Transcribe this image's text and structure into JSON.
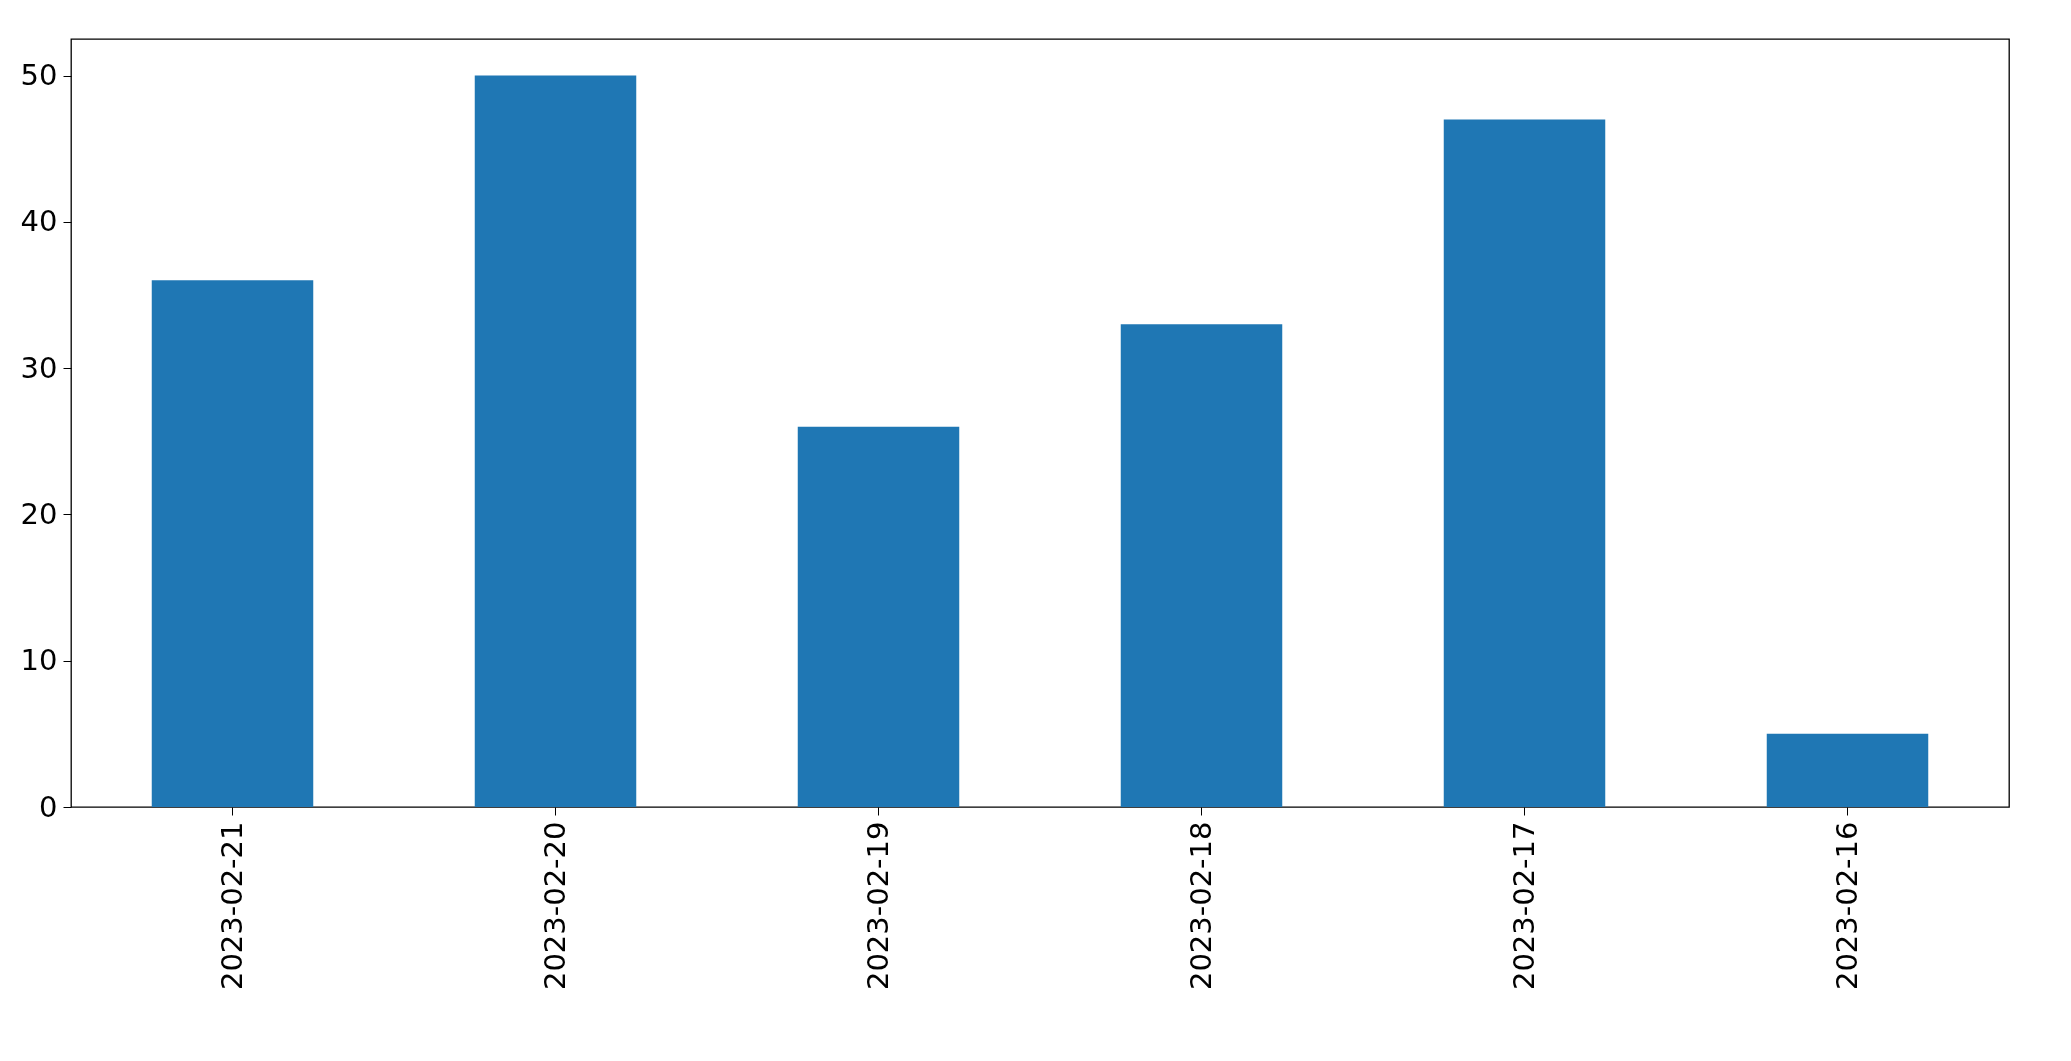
{
  "chart_data": {
    "type": "bar",
    "categories": [
      "2023-02-21",
      "2023-02-20",
      "2023-02-19",
      "2023-02-18",
      "2023-02-17",
      "2023-02-16"
    ],
    "values": [
      36,
      50,
      26,
      33,
      47,
      5
    ],
    "color": "#1f77b4",
    "ylim": [
      0,
      52.5
    ],
    "yticks": [
      0,
      10,
      20,
      30,
      40,
      50
    ],
    "grid": false
  }
}
